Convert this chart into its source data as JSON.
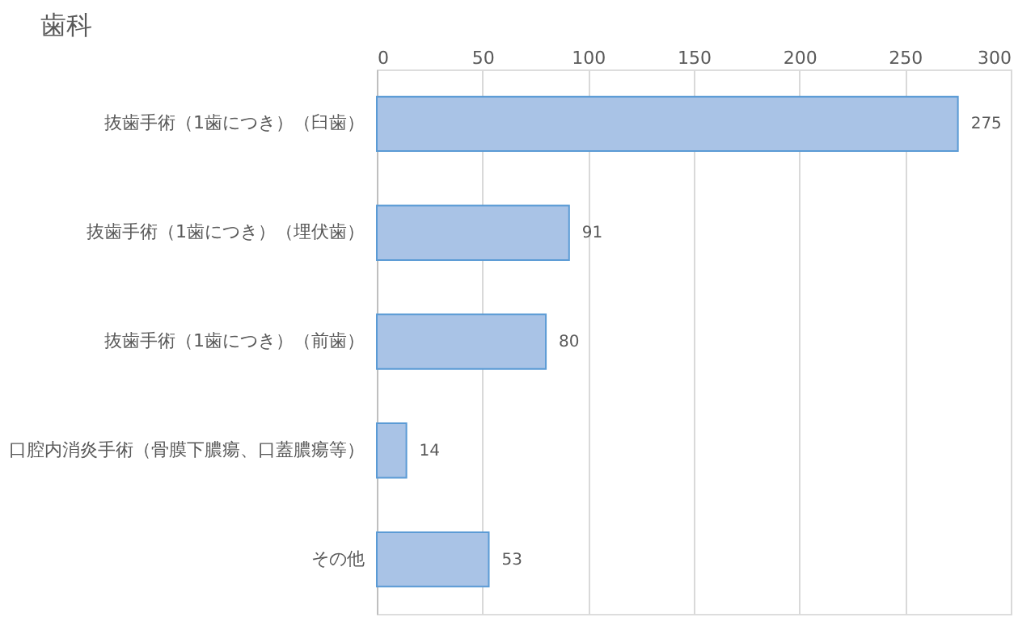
{
  "chart_data": {
    "type": "bar",
    "orientation": "horizontal",
    "title": "歯科",
    "categories": [
      "抜歯手術（1歯につき）（臼歯）",
      "抜歯手術（1歯につき）（埋伏歯）",
      "抜歯手術（1歯につき）（前歯）",
      "口腔内消炎手術（骨膜下膿瘍、口蓋膿瘍等）",
      "その他"
    ],
    "values": [
      275,
      91,
      80,
      14,
      53
    ],
    "color": "#a9c3e6",
    "xlim": [
      0,
      300
    ],
    "xticks": [
      0,
      50,
      100,
      150,
      200,
      250,
      300
    ],
    "grid": "x",
    "data_labels": true
  }
}
